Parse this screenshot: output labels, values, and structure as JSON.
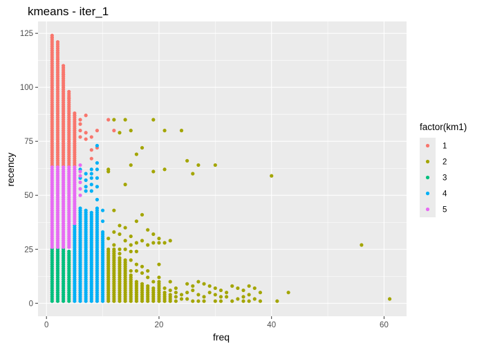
{
  "chart_data": {
    "type": "scatter",
    "title": "kmeans - iter_1",
    "xlabel": "freq",
    "ylabel": "recency",
    "xlim": [
      -1.5,
      64.0
    ],
    "ylim": [
      -6.0,
      130.5
    ],
    "x_ticks": [
      0,
      20,
      40,
      60
    ],
    "y_ticks": [
      0,
      25,
      50,
      75,
      100,
      125
    ],
    "grid": true,
    "legend": {
      "title": "factor(km1)",
      "placement": "right",
      "entries": [
        {
          "label": "1",
          "color": "#F8766D"
        },
        {
          "label": "2",
          "color": "#A3A500"
        },
        {
          "label": "3",
          "color": "#00BF7D"
        },
        {
          "label": "4",
          "color": "#00B0F6"
        },
        {
          "label": "5",
          "color": "#E76BF3"
        }
      ]
    },
    "series": [
      {
        "name": "1",
        "color": "#F8766D",
        "columns": [
          {
            "x": 1,
            "ymin": 64,
            "ymax": 124
          },
          {
            "x": 2,
            "ymin": 64,
            "ymax": 121
          },
          {
            "x": 3,
            "ymin": 64,
            "ymax": 110
          },
          {
            "x": 4,
            "ymin": 64,
            "ymax": 98
          },
          {
            "x": 5,
            "ymin": 64,
            "ymax": 88
          }
        ],
        "points": [
          [
            1,
            123
          ],
          [
            2,
            116
          ],
          [
            2,
            113
          ],
          [
            3,
            106
          ],
          [
            4,
            95
          ],
          [
            5,
            87
          ],
          [
            6,
            85
          ],
          [
            6,
            83
          ],
          [
            6,
            80
          ],
          [
            6,
            77
          ],
          [
            7,
            87
          ],
          [
            7,
            79
          ],
          [
            7,
            76
          ],
          [
            8,
            71
          ],
          [
            8,
            67
          ],
          [
            8,
            77
          ],
          [
            9,
            80
          ],
          [
            9,
            72
          ],
          [
            11,
            85
          ],
          [
            12,
            80
          ]
        ]
      },
      {
        "name": "2",
        "color": "#A3A500",
        "columns": [
          {
            "x": 11,
            "ymin": 1,
            "ymax": 25
          },
          {
            "x": 12,
            "ymin": 1,
            "ymax": 25
          },
          {
            "x": 13,
            "ymin": 1,
            "ymax": 21
          },
          {
            "x": 14,
            "ymin": 1,
            "ymax": 20
          },
          {
            "x": 15,
            "ymin": 1,
            "ymax": 13
          },
          {
            "x": 16,
            "ymin": 1,
            "ymax": 10
          },
          {
            "x": 17,
            "ymin": 1,
            "ymax": 9
          },
          {
            "x": 18,
            "ymin": 1,
            "ymax": 8
          },
          {
            "x": 19,
            "ymin": 1,
            "ymax": 7
          },
          {
            "x": 20,
            "ymin": 1,
            "ymax": 9
          },
          {
            "x": 21,
            "ymin": 1,
            "ymax": 5
          },
          {
            "x": 22,
            "ymin": 1,
            "ymax": 4
          }
        ],
        "points": [
          [
            12,
            85
          ],
          [
            14,
            85
          ],
          [
            13,
            79
          ],
          [
            15,
            80
          ],
          [
            19,
            85
          ],
          [
            21,
            80
          ],
          [
            24,
            80
          ],
          [
            17,
            72
          ],
          [
            16,
            69
          ],
          [
            11,
            62
          ],
          [
            11,
            61
          ],
          [
            15,
            64
          ],
          [
            21,
            62
          ],
          [
            19,
            61
          ],
          [
            25,
            66
          ],
          [
            26,
            60
          ],
          [
            27,
            64
          ],
          [
            30,
            64
          ],
          [
            14,
            55
          ],
          [
            40,
            59
          ],
          [
            17,
            41
          ],
          [
            16,
            38
          ],
          [
            18,
            34
          ],
          [
            12,
            43
          ],
          [
            13,
            36
          ],
          [
            14,
            35
          ],
          [
            15,
            31
          ],
          [
            19,
            32
          ],
          [
            20,
            30
          ],
          [
            17,
            29
          ],
          [
            16,
            28
          ],
          [
            11,
            30
          ],
          [
            12,
            33
          ],
          [
            13,
            32
          ],
          [
            14,
            29
          ],
          [
            15,
            27
          ],
          [
            18,
            27
          ],
          [
            22,
            29
          ],
          [
            19,
            28
          ],
          [
            20,
            28
          ],
          [
            21,
            28
          ],
          [
            56,
            27
          ],
          [
            14,
            25
          ],
          [
            15,
            24
          ],
          [
            16,
            24
          ],
          [
            15,
            20
          ],
          [
            16,
            18
          ],
          [
            13,
            23
          ],
          [
            17,
            14
          ],
          [
            15,
            15
          ],
          [
            16,
            15
          ],
          [
            18,
            12
          ],
          [
            20,
            10
          ],
          [
            22,
            10
          ],
          [
            23,
            7
          ],
          [
            25,
            9
          ],
          [
            26,
            8
          ],
          [
            27,
            10
          ],
          [
            28,
            9
          ],
          [
            29,
            8
          ],
          [
            30,
            7
          ],
          [
            31,
            6
          ],
          [
            32,
            5
          ],
          [
            33,
            8
          ],
          [
            34,
            7
          ],
          [
            35,
            6
          ],
          [
            36,
            8
          ],
          [
            37,
            7
          ],
          [
            38,
            5
          ],
          [
            23,
            5
          ],
          [
            24,
            4
          ],
          [
            25,
            5
          ],
          [
            26,
            6
          ],
          [
            27,
            4
          ],
          [
            28,
            3
          ],
          [
            29,
            5
          ],
          [
            30,
            4
          ],
          [
            31,
            3
          ],
          [
            32,
            3
          ],
          [
            34,
            2
          ],
          [
            35,
            3
          ],
          [
            36,
            4
          ],
          [
            37,
            2
          ],
          [
            38,
            1
          ],
          [
            41,
            1
          ],
          [
            43,
            5
          ],
          [
            61,
            2
          ],
          [
            23,
            1
          ],
          [
            24,
            2
          ],
          [
            25,
            2
          ],
          [
            26,
            1
          ],
          [
            27,
            1
          ],
          [
            28,
            1
          ],
          [
            30,
            1
          ],
          [
            31,
            1
          ],
          [
            33,
            1
          ],
          [
            35,
            1
          ],
          [
            36,
            1
          ],
          [
            23,
            3
          ],
          [
            22,
            6
          ],
          [
            21,
            7
          ],
          [
            20,
            12
          ],
          [
            19,
            10
          ],
          [
            20,
            18
          ],
          [
            17,
            17
          ],
          [
            18,
            15
          ],
          [
            12,
            27
          ],
          [
            13,
            25
          ]
        ]
      },
      {
        "name": "3",
        "color": "#00BF7D",
        "columns": [
          {
            "x": 1,
            "ymin": 1,
            "ymax": 25
          },
          {
            "x": 2,
            "ymin": 1,
            "ymax": 25
          },
          {
            "x": 3,
            "ymin": 1,
            "ymax": 25
          },
          {
            "x": 4,
            "ymin": 1,
            "ymax": 24
          }
        ],
        "points": []
      },
      {
        "name": "4",
        "color": "#00B0F6",
        "columns": [
          {
            "x": 5,
            "ymin": 1,
            "ymax": 36
          },
          {
            "x": 6,
            "ymin": 1,
            "ymax": 44
          },
          {
            "x": 7,
            "ymin": 1,
            "ymax": 43
          },
          {
            "x": 8,
            "ymin": 1,
            "ymax": 42
          },
          {
            "x": 9,
            "ymin": 1,
            "ymax": 44
          },
          {
            "x": 10,
            "ymin": 1,
            "ymax": 33
          }
        ],
        "points": [
          [
            8,
            62
          ],
          [
            8,
            60
          ],
          [
            8,
            58
          ],
          [
            7,
            57
          ],
          [
            7,
            54
          ],
          [
            7,
            52
          ],
          [
            9,
            73
          ],
          [
            9,
            65
          ],
          [
            9,
            62
          ],
          [
            9,
            54
          ],
          [
            9,
            48
          ],
          [
            10,
            43
          ],
          [
            6,
            62
          ],
          [
            6,
            58
          ],
          [
            7,
            60
          ],
          [
            8,
            55
          ],
          [
            8,
            52
          ],
          [
            9,
            58
          ],
          [
            10,
            38
          ]
        ]
      },
      {
        "name": "5",
        "color": "#E76BF3",
        "columns": [
          {
            "x": 1,
            "ymin": 26,
            "ymax": 63
          },
          {
            "x": 2,
            "ymin": 26,
            "ymax": 63
          },
          {
            "x": 3,
            "ymin": 26,
            "ymax": 63
          },
          {
            "x": 4,
            "ymin": 26,
            "ymax": 63
          },
          {
            "x": 5,
            "ymin": 37,
            "ymax": 63
          }
        ],
        "points": [
          [
            6,
            64
          ],
          [
            6,
            61
          ],
          [
            6,
            59
          ],
          [
            6,
            56
          ],
          [
            6,
            53
          ],
          [
            6,
            50
          ]
        ]
      }
    ]
  }
}
